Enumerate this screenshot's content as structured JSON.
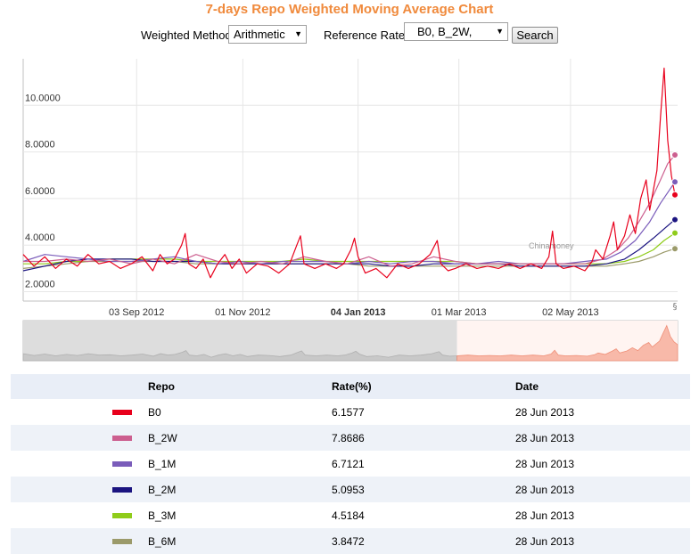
{
  "title": "7-days Repo Weighted Moving Average Chart",
  "controls": {
    "method_label": "Weighted Method",
    "method_value": "Arithmetic",
    "rate_label": "Reference Rate",
    "rate_value": "B0, B_2W,",
    "search_label": "Search"
  },
  "chart_data": {
    "type": "line",
    "watermark": "Chinamoney",
    "y_ticks": [
      "10.0000",
      "8.0000",
      "6.0000",
      "4.0000",
      "2.0000"
    ],
    "y_tick_values": [
      10,
      8,
      6,
      4,
      2
    ],
    "ylim": [
      1.6,
      12.0
    ],
    "x_ticks": [
      "03 Sep 2012",
      "01 Nov 2012",
      "04 Jan 2013",
      "01 Mar 2013",
      "02 May 2013"
    ],
    "x_tick_days": [
      63,
      122,
      186,
      242,
      304
    ],
    "xlim_days": [
      0,
      362
    ],
    "x_start": "01 Jul 2012",
    "highlight_tick": "04 Jan 2013",
    "series": [
      {
        "name": "B0",
        "color": "#e8001c",
        "points": [
          [
            0,
            3.6
          ],
          [
            6,
            3.1
          ],
          [
            12,
            3.5
          ],
          [
            18,
            3.0
          ],
          [
            24,
            3.4
          ],
          [
            30,
            3.1
          ],
          [
            36,
            3.6
          ],
          [
            42,
            3.2
          ],
          [
            48,
            3.3
          ],
          [
            54,
            3.0
          ],
          [
            60,
            3.2
          ],
          [
            66,
            3.5
          ],
          [
            72,
            2.9
          ],
          [
            76,
            3.6
          ],
          [
            80,
            3.2
          ],
          [
            84,
            3.4
          ],
          [
            88,
            4.0
          ],
          [
            90,
            4.5
          ],
          [
            92,
            3.2
          ],
          [
            96,
            3.0
          ],
          [
            100,
            3.4
          ],
          [
            104,
            2.6
          ],
          [
            108,
            3.2
          ],
          [
            112,
            3.6
          ],
          [
            116,
            3.0
          ],
          [
            120,
            3.4
          ],
          [
            124,
            2.8
          ],
          [
            130,
            3.2
          ],
          [
            136,
            3.1
          ],
          [
            142,
            2.8
          ],
          [
            148,
            3.2
          ],
          [
            152,
            4.0
          ],
          [
            154,
            4.4
          ],
          [
            156,
            3.2
          ],
          [
            162,
            3.0
          ],
          [
            168,
            3.2
          ],
          [
            174,
            3.0
          ],
          [
            178,
            3.2
          ],
          [
            182,
            3.8
          ],
          [
            184,
            4.3
          ],
          [
            186,
            3.5
          ],
          [
            190,
            2.8
          ],
          [
            196,
            3.0
          ],
          [
            202,
            2.6
          ],
          [
            208,
            3.2
          ],
          [
            214,
            3.0
          ],
          [
            220,
            3.2
          ],
          [
            226,
            3.6
          ],
          [
            230,
            4.2
          ],
          [
            232,
            3.2
          ],
          [
            236,
            2.9
          ],
          [
            240,
            3.0
          ],
          [
            246,
            3.2
          ],
          [
            252,
            3.0
          ],
          [
            258,
            3.1
          ],
          [
            264,
            3.0
          ],
          [
            270,
            3.2
          ],
          [
            276,
            3.0
          ],
          [
            282,
            3.2
          ],
          [
            288,
            3.0
          ],
          [
            292,
            3.5
          ],
          [
            294,
            4.6
          ],
          [
            296,
            3.2
          ],
          [
            300,
            3.0
          ],
          [
            306,
            3.1
          ],
          [
            312,
            2.9
          ],
          [
            316,
            3.3
          ],
          [
            318,
            3.8
          ],
          [
            322,
            3.4
          ],
          [
            326,
            4.4
          ],
          [
            328,
            5.0
          ],
          [
            330,
            3.8
          ],
          [
            334,
            4.4
          ],
          [
            337,
            5.3
          ],
          [
            340,
            4.5
          ],
          [
            343,
            6.0
          ],
          [
            346,
            6.8
          ],
          [
            348,
            5.5
          ],
          [
            352,
            7.2
          ],
          [
            354,
            9.5
          ],
          [
            356,
            11.6
          ],
          [
            358,
            8.5
          ],
          [
            360,
            7.0
          ],
          [
            362,
            6.1577
          ]
        ]
      },
      {
        "name": "B_2W",
        "color": "#cc5f8f",
        "points": [
          [
            0,
            3.3
          ],
          [
            12,
            3.3
          ],
          [
            24,
            3.4
          ],
          [
            36,
            3.3
          ],
          [
            48,
            3.4
          ],
          [
            60,
            3.2
          ],
          [
            72,
            3.4
          ],
          [
            84,
            3.2
          ],
          [
            96,
            3.6
          ],
          [
            108,
            3.3
          ],
          [
            120,
            3.2
          ],
          [
            132,
            3.3
          ],
          [
            144,
            3.2
          ],
          [
            156,
            3.5
          ],
          [
            168,
            3.3
          ],
          [
            180,
            3.2
          ],
          [
            192,
            3.5
          ],
          [
            204,
            3.1
          ],
          [
            216,
            3.2
          ],
          [
            228,
            3.5
          ],
          [
            240,
            3.3
          ],
          [
            252,
            3.2
          ],
          [
            264,
            3.2
          ],
          [
            276,
            3.2
          ],
          [
            288,
            3.2
          ],
          [
            300,
            3.2
          ],
          [
            312,
            3.2
          ],
          [
            322,
            3.4
          ],
          [
            330,
            3.8
          ],
          [
            336,
            4.3
          ],
          [
            342,
            5.0
          ],
          [
            348,
            5.8
          ],
          [
            354,
            6.8
          ],
          [
            358,
            7.5
          ],
          [
            362,
            7.8686
          ]
        ]
      },
      {
        "name": "B_1M",
        "color": "#7a5cba",
        "points": [
          [
            0,
            3.3
          ],
          [
            12,
            3.6
          ],
          [
            24,
            3.5
          ],
          [
            36,
            3.4
          ],
          [
            48,
            3.3
          ],
          [
            60,
            3.3
          ],
          [
            72,
            3.4
          ],
          [
            84,
            3.5
          ],
          [
            96,
            3.3
          ],
          [
            108,
            3.2
          ],
          [
            120,
            3.3
          ],
          [
            132,
            3.2
          ],
          [
            144,
            3.3
          ],
          [
            156,
            3.3
          ],
          [
            168,
            3.3
          ],
          [
            180,
            3.2
          ],
          [
            192,
            3.3
          ],
          [
            204,
            3.2
          ],
          [
            216,
            3.3
          ],
          [
            228,
            3.3
          ],
          [
            240,
            3.2
          ],
          [
            252,
            3.2
          ],
          [
            264,
            3.3
          ],
          [
            276,
            3.2
          ],
          [
            288,
            3.2
          ],
          [
            300,
            3.2
          ],
          [
            312,
            3.3
          ],
          [
            324,
            3.4
          ],
          [
            332,
            3.7
          ],
          [
            340,
            4.2
          ],
          [
            348,
            5.0
          ],
          [
            354,
            5.8
          ],
          [
            362,
            6.7121
          ]
        ]
      },
      {
        "name": "B_2M",
        "color": "#1b1480",
        "points": [
          [
            0,
            2.9
          ],
          [
            12,
            3.1
          ],
          [
            24,
            3.3
          ],
          [
            36,
            3.4
          ],
          [
            48,
            3.4
          ],
          [
            60,
            3.4
          ],
          [
            72,
            3.3
          ],
          [
            84,
            3.3
          ],
          [
            96,
            3.3
          ],
          [
            108,
            3.2
          ],
          [
            120,
            3.2
          ],
          [
            132,
            3.2
          ],
          [
            144,
            3.2
          ],
          [
            156,
            3.2
          ],
          [
            168,
            3.2
          ],
          [
            180,
            3.2
          ],
          [
            192,
            3.2
          ],
          [
            204,
            3.1
          ],
          [
            216,
            3.1
          ],
          [
            228,
            3.2
          ],
          [
            240,
            3.2
          ],
          [
            252,
            3.2
          ],
          [
            264,
            3.2
          ],
          [
            276,
            3.1
          ],
          [
            288,
            3.1
          ],
          [
            300,
            3.1
          ],
          [
            312,
            3.1
          ],
          [
            324,
            3.2
          ],
          [
            334,
            3.4
          ],
          [
            342,
            3.8
          ],
          [
            350,
            4.3
          ],
          [
            356,
            4.7
          ],
          [
            362,
            5.0953
          ]
        ]
      },
      {
        "name": "B_3M",
        "color": "#8fcc1a",
        "points": [
          [
            0,
            3.2
          ],
          [
            12,
            3.2
          ],
          [
            24,
            3.3
          ],
          [
            36,
            3.3
          ],
          [
            48,
            3.4
          ],
          [
            60,
            3.4
          ],
          [
            72,
            3.4
          ],
          [
            84,
            3.4
          ],
          [
            96,
            3.3
          ],
          [
            108,
            3.3
          ],
          [
            120,
            3.3
          ],
          [
            132,
            3.3
          ],
          [
            144,
            3.3
          ],
          [
            156,
            3.4
          ],
          [
            168,
            3.3
          ],
          [
            180,
            3.3
          ],
          [
            192,
            3.3
          ],
          [
            204,
            3.3
          ],
          [
            216,
            3.3
          ],
          [
            228,
            3.3
          ],
          [
            240,
            3.3
          ],
          [
            252,
            3.2
          ],
          [
            264,
            3.2
          ],
          [
            276,
            3.2
          ],
          [
            288,
            3.2
          ],
          [
            300,
            3.2
          ],
          [
            312,
            3.2
          ],
          [
            324,
            3.2
          ],
          [
            334,
            3.3
          ],
          [
            342,
            3.5
          ],
          [
            350,
            3.8
          ],
          [
            356,
            4.2
          ],
          [
            362,
            4.5184
          ]
        ]
      },
      {
        "name": "B_6M",
        "color": "#9b9a6a",
        "points": [
          [
            0,
            3.0
          ],
          [
            12,
            3.1
          ],
          [
            24,
            3.2
          ],
          [
            36,
            3.3
          ],
          [
            48,
            3.3
          ],
          [
            60,
            3.3
          ],
          [
            72,
            3.3
          ],
          [
            84,
            3.3
          ],
          [
            96,
            3.2
          ],
          [
            108,
            3.2
          ],
          [
            120,
            3.2
          ],
          [
            132,
            3.2
          ],
          [
            144,
            3.2
          ],
          [
            156,
            3.2
          ],
          [
            168,
            3.2
          ],
          [
            180,
            3.2
          ],
          [
            192,
            3.1
          ],
          [
            204,
            3.1
          ],
          [
            216,
            3.1
          ],
          [
            228,
            3.1
          ],
          [
            240,
            3.1
          ],
          [
            252,
            3.1
          ],
          [
            264,
            3.1
          ],
          [
            276,
            3.1
          ],
          [
            288,
            3.1
          ],
          [
            300,
            3.1
          ],
          [
            312,
            3.1
          ],
          [
            324,
            3.1
          ],
          [
            334,
            3.2
          ],
          [
            342,
            3.3
          ],
          [
            350,
            3.5
          ],
          [
            356,
            3.7
          ],
          [
            362,
            3.8472
          ]
        ]
      }
    ]
  },
  "table": {
    "headers": [
      "Repo",
      "Rate(%)",
      "Date"
    ],
    "rows": [
      {
        "repo": "B0",
        "rate": "6.1577",
        "date": "28 Jun 2013",
        "color": "#e8001c"
      },
      {
        "repo": "B_2W",
        "rate": "7.8686",
        "date": "28 Jun 2013",
        "color": "#cc5f8f"
      },
      {
        "repo": "B_1M",
        "rate": "6.7121",
        "date": "28 Jun 2013",
        "color": "#7a5cba"
      },
      {
        "repo": "B_2M",
        "rate": "5.0953",
        "date": "28 Jun 2013",
        "color": "#1b1480"
      },
      {
        "repo": "B_3M",
        "rate": "4.5184",
        "date": "28 Jun 2013",
        "color": "#8fcc1a"
      },
      {
        "repo": "B_6M",
        "rate": "3.8472",
        "date": "28 Jun 2013",
        "color": "#9b9a6a"
      }
    ]
  }
}
